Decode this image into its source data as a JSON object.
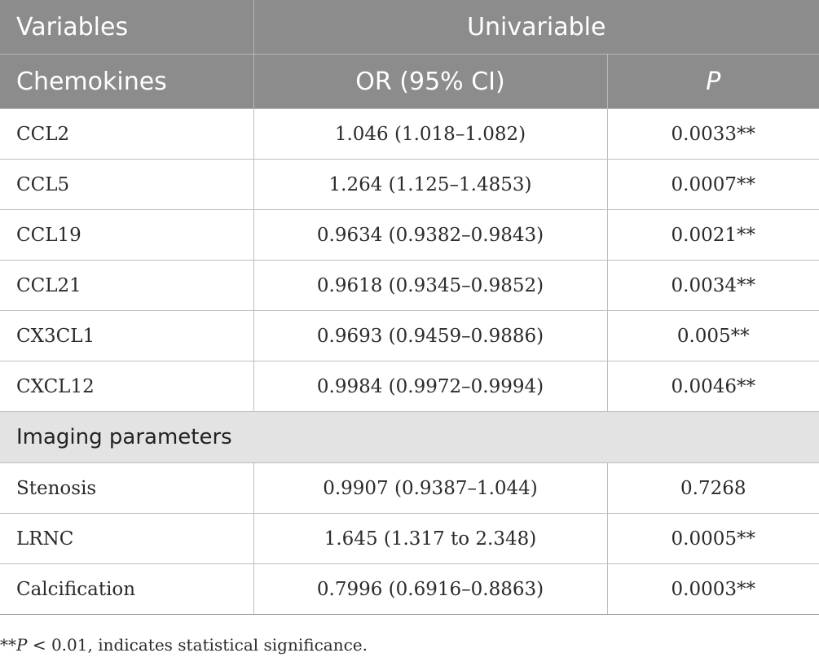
{
  "header": {
    "row1": {
      "col1": "Variables",
      "col2": "Univariable"
    },
    "row2": {
      "col1": "Chemokines",
      "col2": "OR (95% CI)",
      "col3": "P"
    }
  },
  "chemokines": [
    {
      "name": "CCL2",
      "or": "1.046 (1.018–1.082)",
      "p": "0.0033**"
    },
    {
      "name": "CCL5",
      "or": "1.264 (1.125–1.4853)",
      "p": "0.0007**"
    },
    {
      "name": "CCL19",
      "or": "0.9634 (0.9382–0.9843)",
      "p": "0.0021**"
    },
    {
      "name": "CCL21",
      "or": "0.9618 (0.9345–0.9852)",
      "p": "0.0034**"
    },
    {
      "name": "CX3CL1",
      "or": "0.9693 (0.9459–0.9886)",
      "p": "0.005**"
    },
    {
      "name": "CXCL12",
      "or": "0.9984 (0.9972–0.9994)",
      "p": "0.0046**"
    }
  ],
  "imaging_section": "Imaging parameters",
  "imaging": [
    {
      "name": "Stenosis",
      "or": "0.9907 (0.9387–1.044)",
      "p": "0.7268"
    },
    {
      "name": "LRNC",
      "or": "1.645 (1.317 to 2.348)",
      "p": "0.0005**"
    },
    {
      "name": "Calcification",
      "or": "0.7996 (0.6916–0.8863)",
      "p": "0.0003**"
    }
  ],
  "footnote": {
    "prefix": "**",
    "p_symbol": "P",
    "text": " < 0.01, indicates statistical significance."
  }
}
